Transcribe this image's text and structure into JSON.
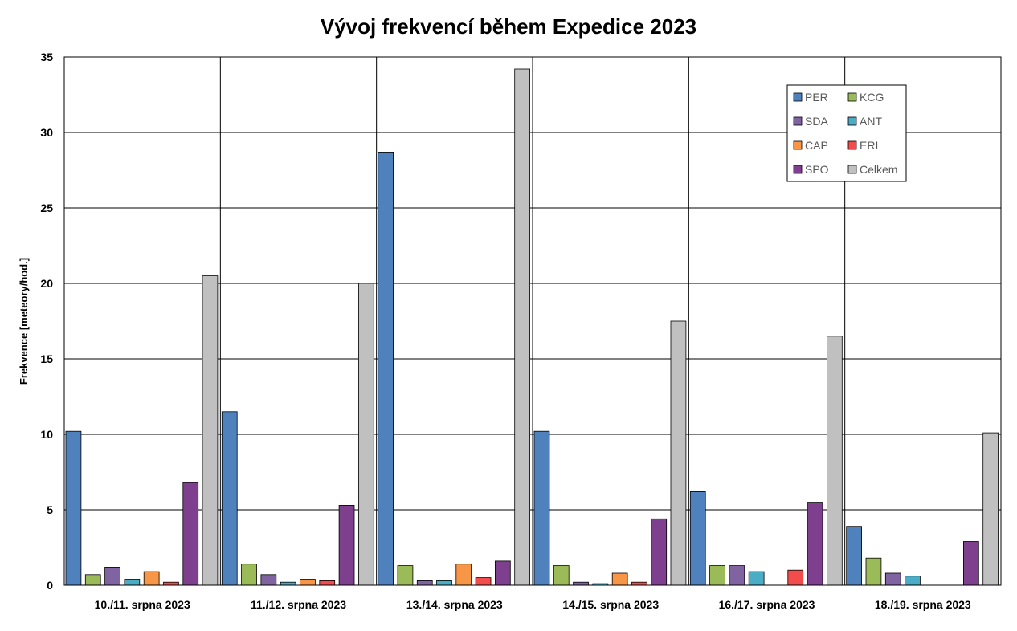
{
  "chart_data": {
    "type": "bar",
    "title": "Vývoj frekvencí během Expedice 2023",
    "xlabel": "",
    "ylabel": "Frekvence [meteory/hod.]",
    "ylim": [
      0,
      35
    ],
    "yticks": [
      0,
      5,
      10,
      15,
      20,
      25,
      30,
      35
    ],
    "grid": true,
    "legend_position": "top-right",
    "categories": [
      "10./11. srpna 2023",
      "11./12. srpna 2023",
      "13./14. srpna 2023",
      "14./15. srpna 2023",
      "16./17. srpna 2023",
      "18./19. srpna 2023"
    ],
    "series": [
      {
        "name": "PER",
        "color": "#4f81bd",
        "values": [
          10.2,
          11.5,
          28.7,
          10.2,
          6.2,
          3.9
        ]
      },
      {
        "name": "KCG",
        "color": "#9bbb59",
        "values": [
          0.7,
          1.4,
          1.3,
          1.3,
          1.3,
          1.8
        ]
      },
      {
        "name": "SDA",
        "color": "#8064a2",
        "values": [
          1.2,
          0.7,
          0.3,
          0.2,
          1.3,
          0.8
        ]
      },
      {
        "name": "ANT",
        "color": "#4bacc6",
        "values": [
          0.4,
          0.2,
          0.3,
          0.1,
          0.9,
          0.6
        ]
      },
      {
        "name": "CAP",
        "color": "#f79646",
        "values": [
          0.9,
          0.4,
          1.4,
          0.8,
          0.0,
          0.0
        ]
      },
      {
        "name": "ERI",
        "color": "#f24c4c",
        "values": [
          0.2,
          0.3,
          0.5,
          0.2,
          1.0,
          0.0
        ]
      },
      {
        "name": "SPO",
        "color": "#7f3f8f",
        "values": [
          6.8,
          5.3,
          1.6,
          4.4,
          5.5,
          2.9
        ]
      },
      {
        "name": "Celkem",
        "color": "#c0c0c0",
        "values": [
          20.5,
          20.0,
          34.2,
          17.5,
          16.5,
          10.1
        ]
      }
    ]
  }
}
